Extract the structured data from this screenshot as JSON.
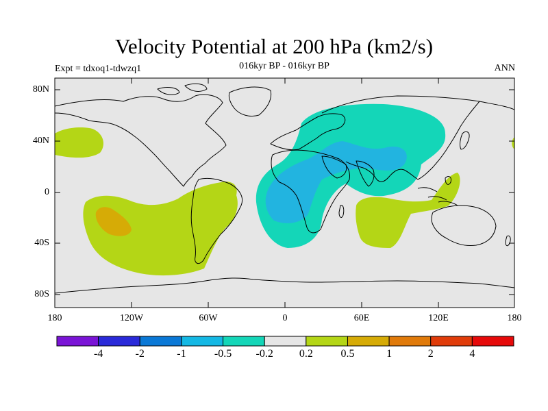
{
  "header": {
    "title": "Velocity Potential at 200 hPa (km2/s)",
    "subtitle": "016kyr BP - 016kyr BP",
    "left_label": "Expt = tdxoq1-tdwzq1",
    "right_label": "ANN"
  },
  "axes": {
    "lat_ticks": [
      "80N",
      "40N",
      "0",
      "40S",
      "80S"
    ],
    "lon_ticks": [
      "180",
      "120W",
      "60W",
      "0",
      "60E",
      "120E",
      "180"
    ]
  },
  "colorbar": {
    "labels": [
      "-4",
      "-2",
      "-1",
      "-0.5",
      "-0.2",
      "0.2",
      "0.5",
      "1",
      "2",
      "4"
    ],
    "colors": [
      "#7a14d6",
      "#2a2ad9",
      "#0a78d6",
      "#14b8e4",
      "#14d6b8",
      "#e6e6e6",
      "#b4d616",
      "#d6ab06",
      "#e07a0a",
      "#e03c0a",
      "#e60a0a"
    ]
  },
  "map": {
    "background_color": "#e6e6e6",
    "coastline_color": "#000000",
    "regions": [
      {
        "name": "teal-negative-eurasia-africa",
        "color": "#14d6b8"
      },
      {
        "name": "blue-negative-africa-asia",
        "color": "#22b4e0"
      },
      {
        "name": "green-positive-pacific",
        "color": "#b4d616"
      },
      {
        "name": "orange-positive-south-pacific",
        "color": "#d6ab06"
      },
      {
        "name": "green-positive-indian-ocean",
        "color": "#b4d616"
      },
      {
        "name": "green-positive-north-pacific",
        "color": "#b4d616"
      }
    ]
  }
}
